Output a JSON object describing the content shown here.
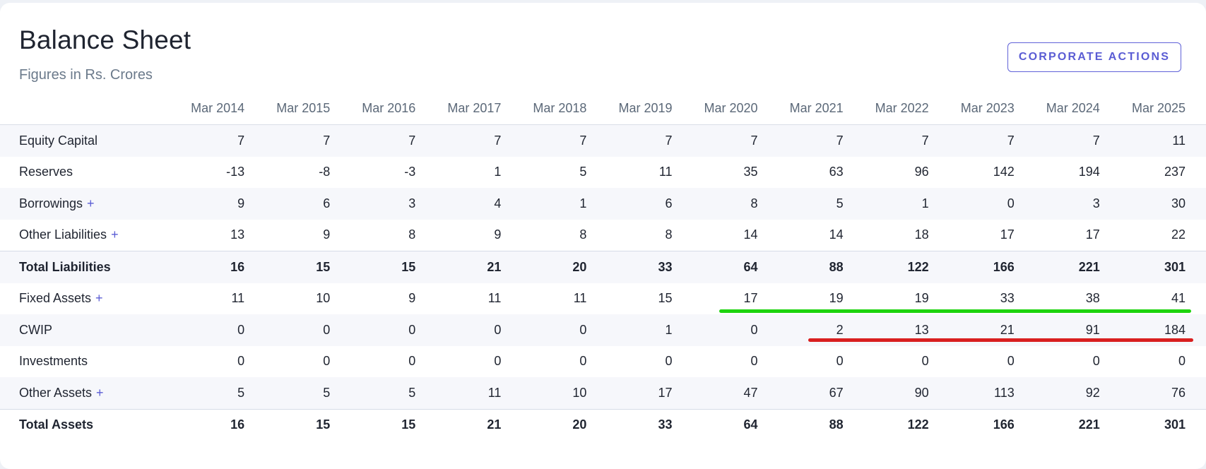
{
  "header": {
    "title": "Balance Sheet",
    "subtitle": "Figures in Rs. Crores",
    "corporate_actions_label": "CORPORATE ACTIONS"
  },
  "table": {
    "columns": [
      "Mar 2014",
      "Mar 2015",
      "Mar 2016",
      "Mar 2017",
      "Mar 2018",
      "Mar 2019",
      "Mar 2020",
      "Mar 2021",
      "Mar 2022",
      "Mar 2023",
      "Mar 2024",
      "Mar 2025"
    ],
    "rows": [
      {
        "label": "Equity Capital",
        "expandable": false,
        "total": false,
        "values": [
          "7",
          "7",
          "7",
          "7",
          "7",
          "7",
          "7",
          "7",
          "7",
          "7",
          "7",
          "11"
        ]
      },
      {
        "label": "Reserves",
        "expandable": false,
        "total": false,
        "values": [
          "-13",
          "-8",
          "-3",
          "1",
          "5",
          "11",
          "35",
          "63",
          "96",
          "142",
          "194",
          "237"
        ]
      },
      {
        "label": "Borrowings",
        "expandable": true,
        "total": false,
        "values": [
          "9",
          "6",
          "3",
          "4",
          "1",
          "6",
          "8",
          "5",
          "1",
          "0",
          "3",
          "30"
        ]
      },
      {
        "label": "Other Liabilities",
        "expandable": true,
        "total": false,
        "values": [
          "13",
          "9",
          "8",
          "9",
          "8",
          "8",
          "14",
          "14",
          "18",
          "17",
          "17",
          "22"
        ]
      },
      {
        "label": "Total Liabilities",
        "expandable": false,
        "total": true,
        "values": [
          "16",
          "15",
          "15",
          "21",
          "20",
          "33",
          "64",
          "88",
          "122",
          "166",
          "221",
          "301"
        ]
      },
      {
        "label": "Fixed Assets",
        "expandable": true,
        "total": false,
        "values": [
          "11",
          "10",
          "9",
          "11",
          "11",
          "15",
          "17",
          "19",
          "19",
          "33",
          "38",
          "41"
        ]
      },
      {
        "label": "CWIP",
        "expandable": false,
        "total": false,
        "values": [
          "0",
          "0",
          "0",
          "0",
          "0",
          "1",
          "0",
          "2",
          "13",
          "21",
          "91",
          "184"
        ]
      },
      {
        "label": "Investments",
        "expandable": false,
        "total": false,
        "values": [
          "0",
          "0",
          "0",
          "0",
          "0",
          "0",
          "0",
          "0",
          "0",
          "0",
          "0",
          "0"
        ]
      },
      {
        "label": "Other Assets",
        "expandable": true,
        "total": false,
        "values": [
          "5",
          "5",
          "5",
          "11",
          "10",
          "17",
          "47",
          "67",
          "90",
          "113",
          "92",
          "76"
        ]
      },
      {
        "label": "Total Assets",
        "expandable": false,
        "total": true,
        "values": [
          "16",
          "15",
          "15",
          "21",
          "20",
          "33",
          "64",
          "88",
          "122",
          "166",
          "221",
          "301"
        ]
      }
    ],
    "expand_symbol": "+"
  },
  "annotations": {
    "green_underline_color": "#1ed40f",
    "red_underline_color": "#d91f1f"
  }
}
